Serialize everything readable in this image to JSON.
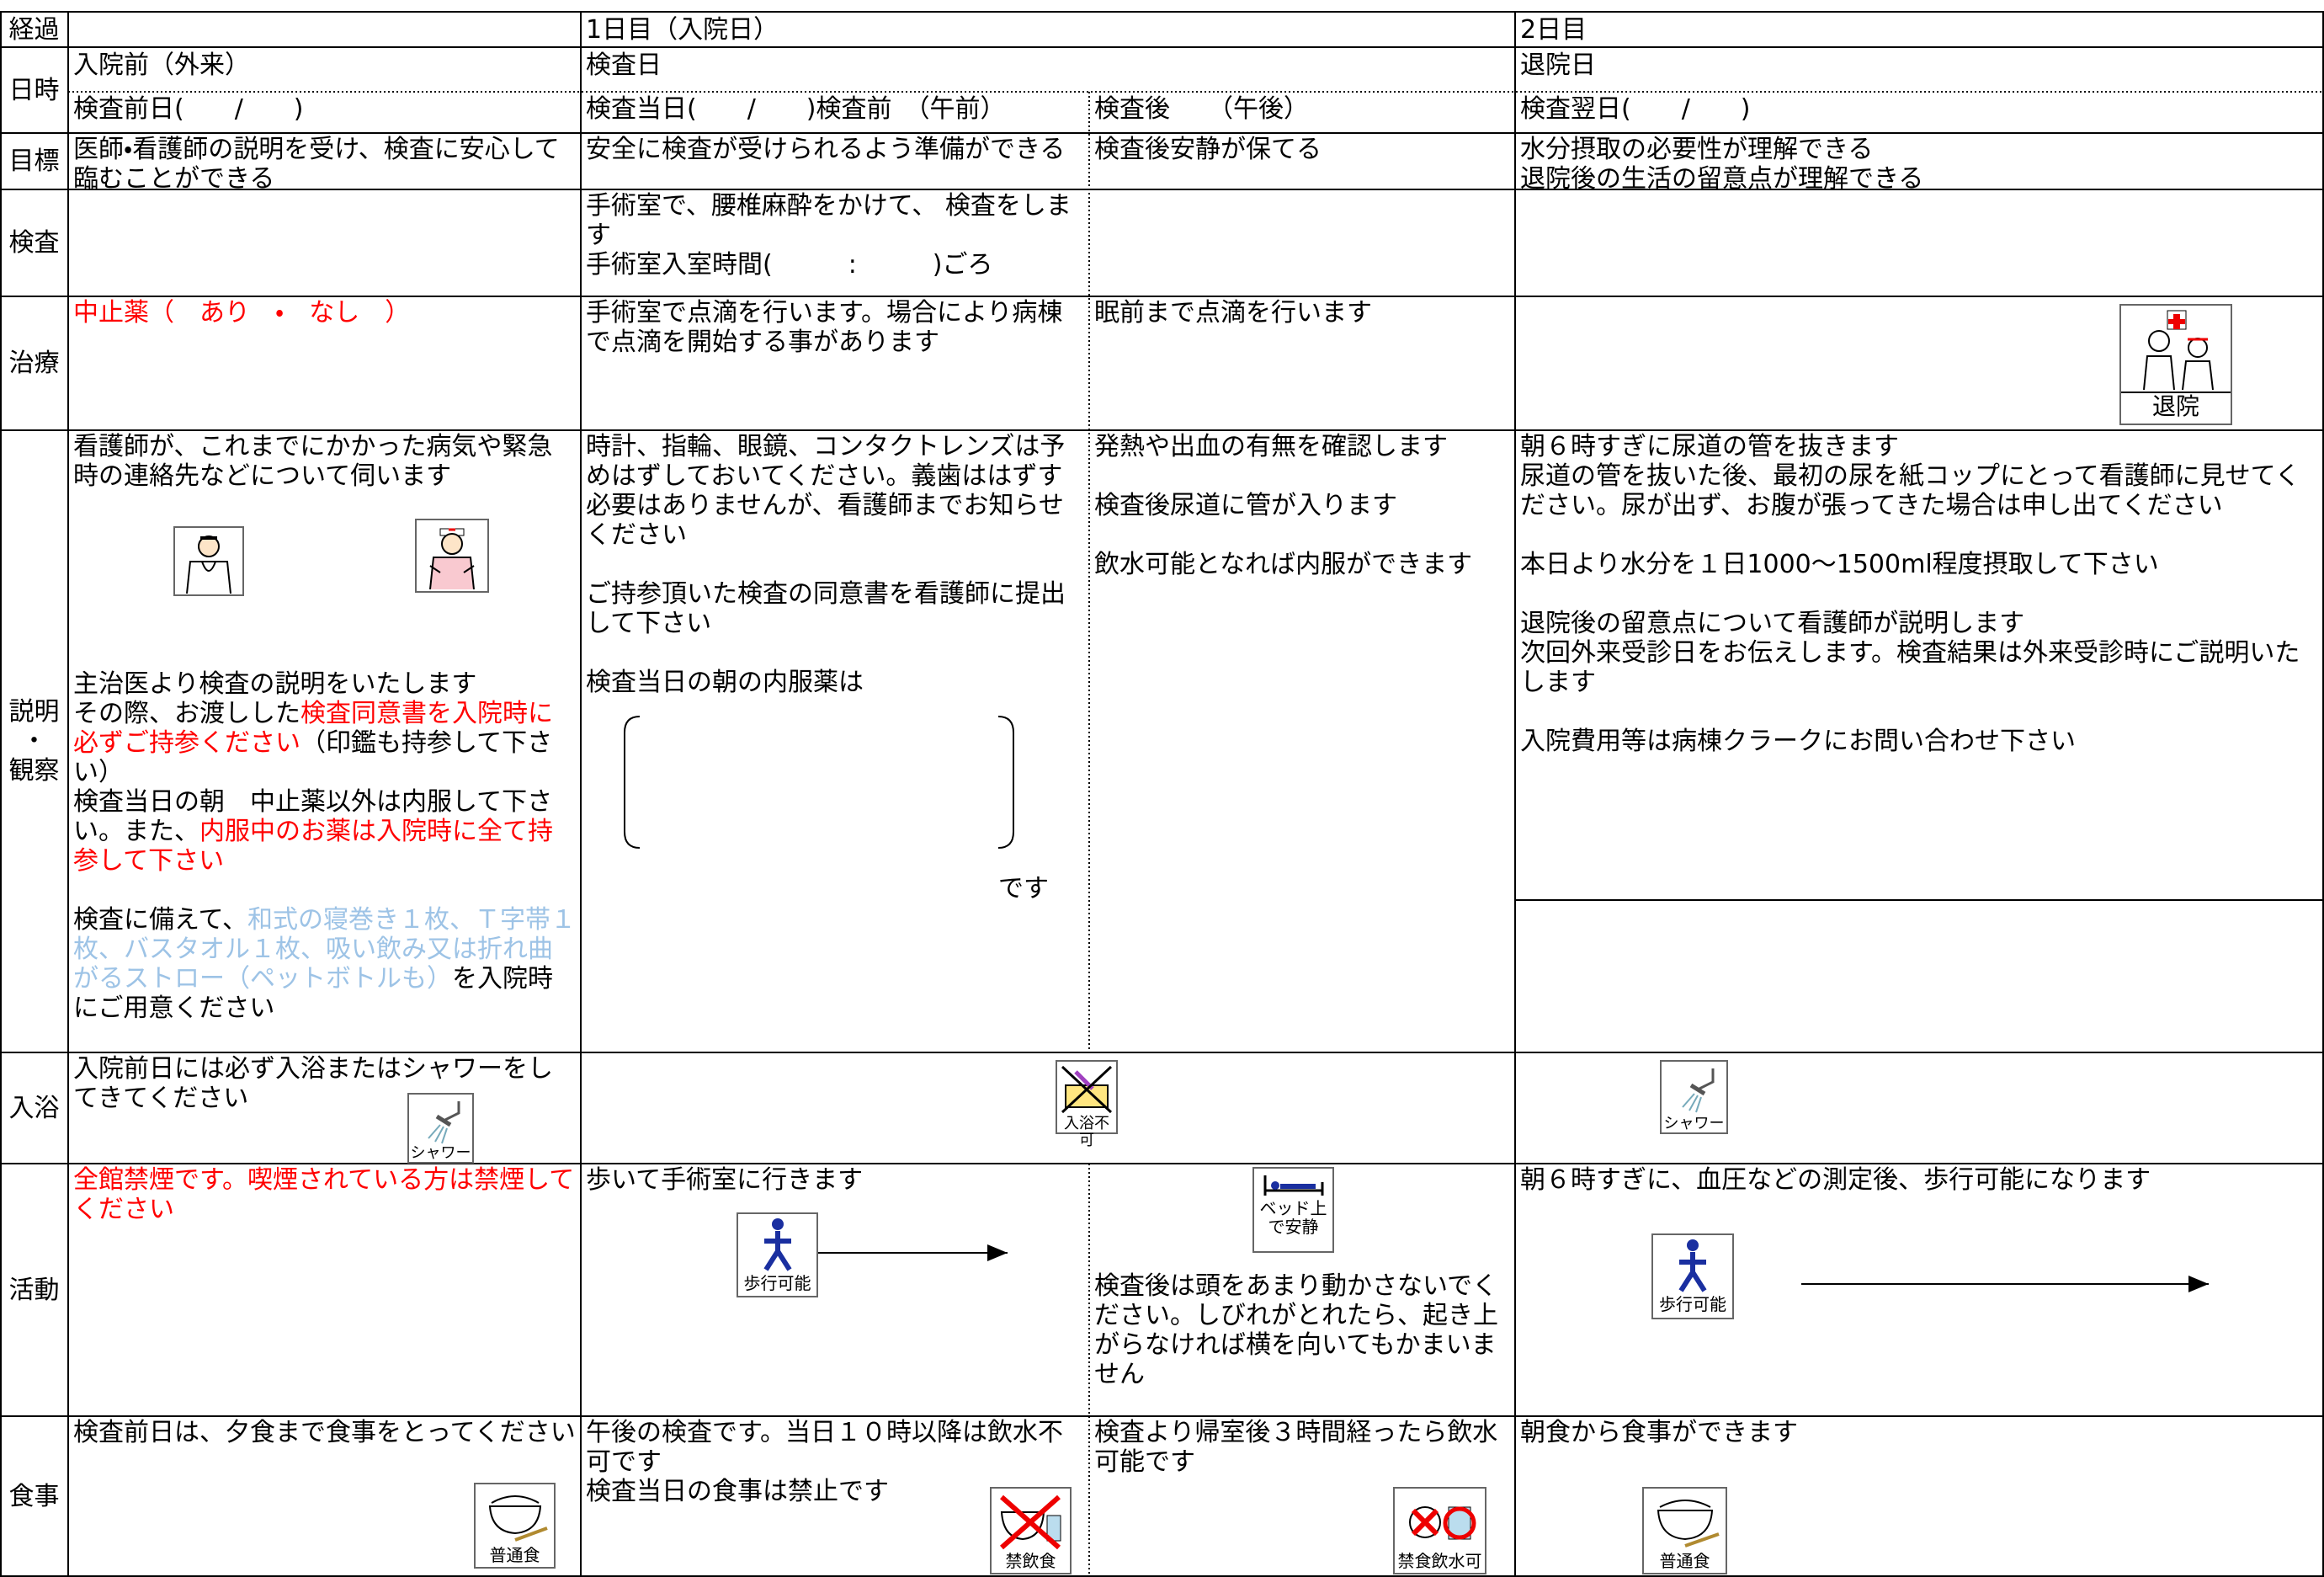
{
  "header": {
    "title": "経過",
    "day1": "1日目（入院日）",
    "day2": "2日目"
  },
  "labels": {
    "datetime": "日時",
    "goal": "目標",
    "exam": "検査",
    "treatment": "治療",
    "explanation": [
      "説明",
      "・",
      "観察"
    ],
    "bath": "入浴",
    "activity": "活動",
    "meal": "食事"
  },
  "datetime": {
    "pre": "入院前（外来）",
    "exam_day": "検査日",
    "discharge_day": "退院日",
    "pre_date": "検査前日(　　/　　)",
    "exam_before": "検査当日(　　/　　)検査前　（午前）",
    "exam_after": "検査後　　（午後）",
    "next_day": "検査翌日(　　/　　)"
  },
  "goal": {
    "pre": "医師・看護師の説明を受け、検査に安心して臨むことができる",
    "exam_before": "安全に検査が受けられるよう準備ができる",
    "exam_after": "検査後安静が保てる",
    "discharge": [
      "水分摂取の必要性が理解できる",
      "退院後の生活の留意点が理解できる"
    ]
  },
  "exam": {
    "exam_before": [
      "手術室で、腰椎麻酔をかけて、 検査をします",
      "手術室入室時間(　　　:　　　)ごろ"
    ]
  },
  "treatment": {
    "pre": "中止薬（　あり　・　なし　）",
    "exam_before": "手術室で点滴を行います。場合により病棟で点滴を開始する事があります",
    "exam_after": "眠前まで点滴を行います",
    "discharge_icon": "退院"
  },
  "explanation": {
    "pre": {
      "intro": "看護師が、これまでにかかった病気や緊急時の連絡先などについて伺います",
      "doctor": "主治医より検査の説明をいたします",
      "consent": [
        "その際、お渡しした",
        "検査同意書を入院時に必ずご持参ください",
        "（印鑑も持参して下さい）"
      ],
      "medicine": [
        "検査当日の朝　中止薬以外は内服して下さい。また、",
        "内服中のお薬は入院時に全て持参して下さい"
      ],
      "prepare": [
        "検査に備えて、",
        "和式の寝巻き１枚、Ｔ字帯１枚、バスタオル１枚、吸い飲み又は折れ曲がるストロー（ペットボトルも）",
        "を入院時にご用意ください"
      ]
    },
    "exam_before": [
      "時計、指輪、眼鏡、コンタクトレンズは予めはずしておいてください。義歯ははずす必要はありませんが、看護師までお知らせください",
      "ご持参頂いた検査の同意書を看護師に提出して下さい",
      "検査当日の朝の内服薬は",
      "です"
    ],
    "exam_after": [
      "発熱や出血の有無を確認します",
      "検査後尿道に管が入ります",
      "飲水可能となれば内服ができます"
    ],
    "discharge": [
      "朝６時すぎに尿道の管を抜きます",
      "尿道の管を抜いた後、最初の尿を紙コップにとって看護師に見せてください。尿が出ず、お腹が張ってきた場合は申し出てください",
      "本日より水分を１日1000～1500ml程度摂取して下さい",
      "退院後の留意点について看護師が説明します",
      "次回外来受診日をお伝えします。検査結果は外来受診時にご説明いたします",
      "入院費用等は病棟クラークにお問い合わせ下さい"
    ]
  },
  "bath": {
    "pre": "入院前日には必ず入浴またはシャワーをしてきてください",
    "pre_icon": "シャワー",
    "exam_icon": "入浴不可",
    "discharge_icon": "シャワー"
  },
  "activity": {
    "pre": "全館禁煙です。喫煙されている方は禁煙してください",
    "exam_before": "歩いて手術室に行きます",
    "exam_before_icon": "歩行可能",
    "exam_after_icon": "ベッド上で安静",
    "exam_after": "検査後は頭をあまり動かさないでください。しびれがとれたら、起き上がらなければ横を向いてもかまいません",
    "discharge": "朝６時すぎに、血圧などの測定後、歩行可能になります",
    "discharge_icon": "歩行可能"
  },
  "meal": {
    "pre": "検査前日は、夕食まで食事をとってください",
    "pre_icon": "普通食",
    "exam_before": [
      "午後の検査です。当日１０時以降は飲水不可です",
      "検査当日の食事は禁止です"
    ],
    "exam_before_icon": "禁飲食",
    "exam_after": "検査より帰室後３時間経ったら飲水可能です",
    "exam_after_icon": "禁食飲水可",
    "discharge": "朝食から食事ができます",
    "discharge_icon": "普通食"
  }
}
